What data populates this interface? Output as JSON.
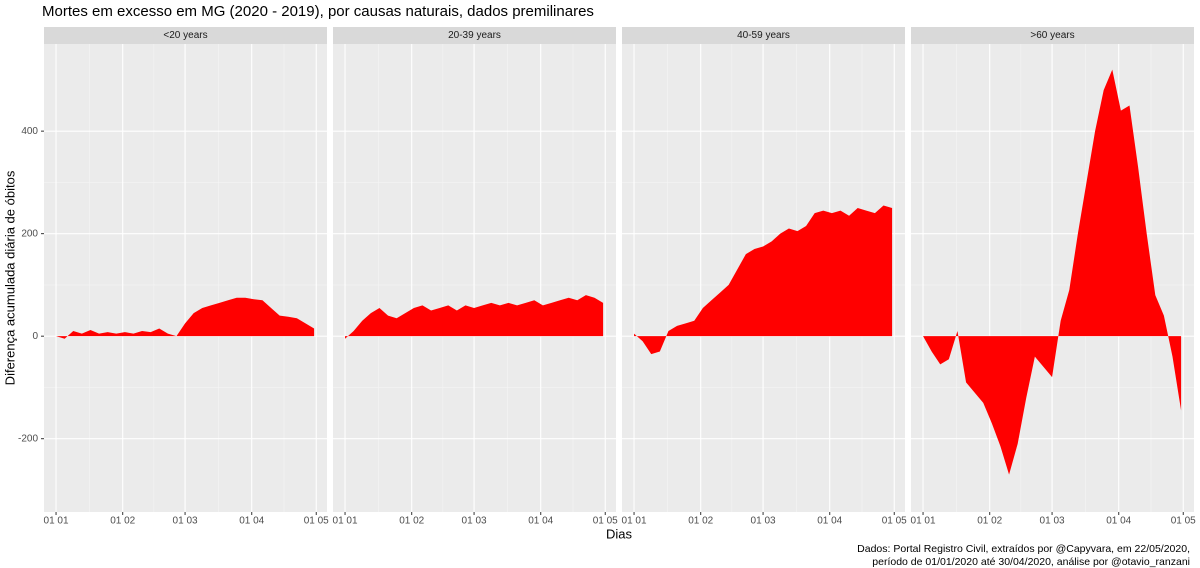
{
  "title": "Mortes em excesso em MG (2020 - 2019), por causas naturais, dados premilinares",
  "xlabel": "Dias",
  "ylabel": "Diferença acumulada diária de óbitos",
  "caption": [
    "Dados: Portal Registro Civil, extraídos por @Capyvara, em 22/05/2020,",
    "período de 01/01/2020 até 30/04/2020, análise por @otavio_ranzani"
  ],
  "chart_data": [
    {
      "type": "area",
      "title": "<20 years",
      "color": "#ff0000",
      "x": [
        0,
        4,
        8,
        12,
        16,
        20,
        24,
        28,
        32,
        36,
        40,
        44,
        48,
        52,
        56,
        60,
        64,
        68,
        72,
        76,
        80,
        84,
        88,
        92,
        96,
        100,
        104,
        108,
        112,
        116,
        120
      ],
      "values": [
        0,
        -5,
        10,
        5,
        12,
        5,
        8,
        5,
        8,
        5,
        10,
        8,
        15,
        5,
        0,
        25,
        45,
        55,
        60,
        65,
        70,
        75,
        75,
        72,
        70,
        55,
        40,
        38,
        35,
        25,
        15
      ],
      "xlim": [
        -5.6,
        126
      ],
      "xticks": [
        {
          "value": 0,
          "label": "01 01"
        },
        {
          "value": 31,
          "label": "01 02"
        },
        {
          "value": 60,
          "label": "01 03"
        },
        {
          "value": 91,
          "label": "01 04"
        },
        {
          "value": 121,
          "label": "01 05"
        }
      ],
      "ylim": [
        -343,
        570
      ],
      "yticks": [
        -200,
        0,
        200,
        400
      ]
    },
    {
      "type": "area",
      "title": "20-39 years",
      "color": "#ff0000",
      "x": [
        0,
        4,
        8,
        12,
        16,
        20,
        24,
        28,
        32,
        36,
        40,
        44,
        48,
        52,
        56,
        60,
        64,
        68,
        72,
        76,
        80,
        84,
        88,
        92,
        96,
        100,
        104,
        108,
        112,
        116,
        120
      ],
      "values": [
        -5,
        10,
        30,
        45,
        55,
        40,
        35,
        45,
        55,
        60,
        50,
        55,
        60,
        50,
        60,
        55,
        60,
        65,
        60,
        65,
        60,
        65,
        70,
        60,
        65,
        70,
        75,
        70,
        80,
        75,
        65
      ],
      "xlim": [
        -5.6,
        126
      ],
      "xticks": [
        {
          "value": 0,
          "label": "01 01"
        },
        {
          "value": 31,
          "label": "01 02"
        },
        {
          "value": 60,
          "label": "01 03"
        },
        {
          "value": 91,
          "label": "01 04"
        },
        {
          "value": 121,
          "label": "01 05"
        }
      ],
      "ylim": [
        -343,
        570
      ],
      "yticks": [
        -200,
        0,
        200,
        400
      ]
    },
    {
      "type": "area",
      "title": "40-59 years",
      "color": "#ff0000",
      "x": [
        0,
        4,
        8,
        12,
        16,
        20,
        24,
        28,
        32,
        36,
        40,
        44,
        48,
        52,
        56,
        60,
        64,
        68,
        72,
        76,
        80,
        84,
        88,
        92,
        96,
        100,
        104,
        108,
        112,
        116,
        120
      ],
      "values": [
        5,
        -10,
        -35,
        -30,
        10,
        20,
        25,
        30,
        55,
        70,
        85,
        100,
        130,
        160,
        170,
        175,
        185,
        200,
        210,
        205,
        215,
        240,
        245,
        240,
        245,
        235,
        250,
        245,
        240,
        255,
        250
      ],
      "xlim": [
        -5.6,
        126
      ],
      "xticks": [
        {
          "value": 0,
          "label": "01 01"
        },
        {
          "value": 31,
          "label": "01 02"
        },
        {
          "value": 60,
          "label": "01 03"
        },
        {
          "value": 91,
          "label": "01 04"
        },
        {
          "value": 121,
          "label": "01 05"
        }
      ],
      "ylim": [
        -343,
        570
      ],
      "yticks": [
        -200,
        0,
        200,
        400
      ]
    },
    {
      "type": "area",
      "title": ">60 years",
      "color": "#ff0000",
      "x": [
        0,
        4,
        8,
        12,
        16,
        20,
        24,
        28,
        32,
        36,
        40,
        44,
        48,
        52,
        56,
        60,
        64,
        68,
        72,
        76,
        80,
        84,
        88,
        92,
        96,
        100,
        104,
        108,
        112,
        116,
        120
      ],
      "values": [
        0,
        -30,
        -55,
        -45,
        10,
        -90,
        -110,
        -130,
        -170,
        -215,
        -270,
        -210,
        -120,
        -40,
        -60,
        -80,
        30,
        90,
        200,
        300,
        400,
        480,
        520,
        440,
        450,
        330,
        200,
        80,
        40,
        -40,
        -145
      ],
      "xlim": [
        -5.6,
        126
      ],
      "xticks": [
        {
          "value": 0,
          "label": "01 01"
        },
        {
          "value": 31,
          "label": "01 02"
        },
        {
          "value": 60,
          "label": "01 03"
        },
        {
          "value": 91,
          "label": "01 04"
        },
        {
          "value": 121,
          "label": "01 05"
        }
      ],
      "ylim": [
        -343,
        570
      ],
      "yticks": [
        -200,
        0,
        200,
        400
      ]
    }
  ]
}
